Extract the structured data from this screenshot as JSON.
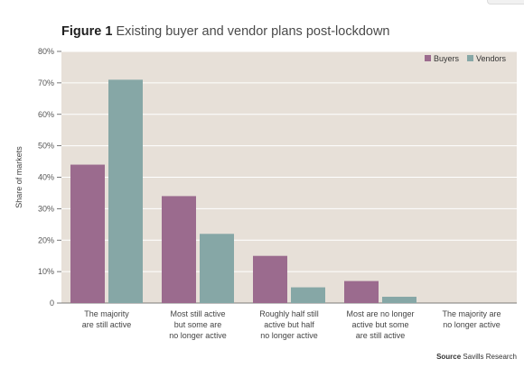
{
  "figure": {
    "label": "Figure 1",
    "caption": "Existing buyer and vendor plans post-lockdown"
  },
  "source": {
    "label": "Source",
    "text": "Savills Research"
  },
  "colors": {
    "plot_background": "#e7e0d8",
    "gridline": "#ffffff",
    "buyers": "#9b6b8e",
    "vendors": "#86a7a6"
  },
  "chart_data": {
    "type": "bar",
    "title": "Existing buyer and vendor plans post-lockdown",
    "xlabel": "",
    "ylabel": "Share of markets",
    "ylim": [
      0,
      80
    ],
    "yticks": [
      "0",
      "10%",
      "20%",
      "30%",
      "40%",
      "50%",
      "60%",
      "70%",
      "80%"
    ],
    "grid": true,
    "legend_position": "top-right",
    "categories": [
      [
        "The majority",
        "are still active"
      ],
      [
        "Most still active",
        "but some are",
        "no longer active"
      ],
      [
        "Roughly half still",
        "active but half",
        "no longer active"
      ],
      [
        "Most are no longer",
        "active but some",
        "are still active"
      ],
      [
        "The majority are",
        "no longer active"
      ]
    ],
    "series": [
      {
        "name": "Buyers",
        "color": "#9b6b8e",
        "values": [
          44,
          34,
          15,
          7,
          0
        ]
      },
      {
        "name": "Vendors",
        "color": "#86a7a6",
        "values": [
          71,
          22,
          5,
          2,
          0
        ]
      }
    ]
  }
}
